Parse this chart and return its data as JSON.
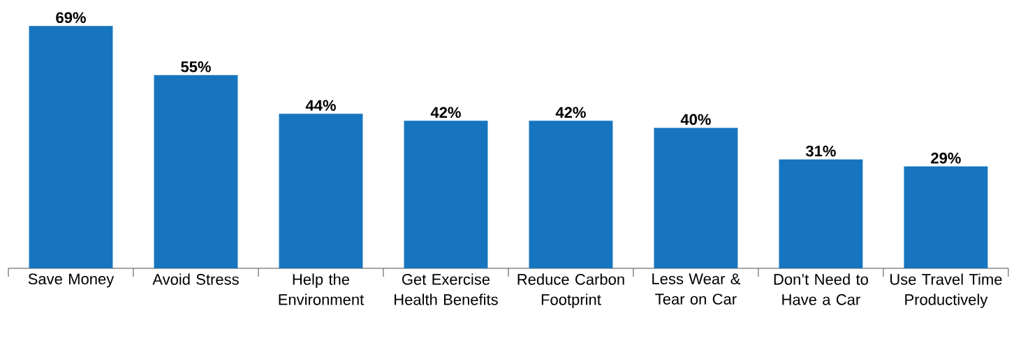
{
  "chart_data": {
    "type": "bar",
    "categories": [
      "Save Money",
      "Avoid Stress",
      "Help the Environment",
      "Get Exercise Health Benefits",
      "Reduce Carbon Footprint",
      "Less Wear & Tear on Car",
      "Don’t Need to Have a Car",
      "Use Travel Time Productively"
    ],
    "values": [
      69,
      55,
      44,
      42,
      42,
      40,
      31,
      29
    ],
    "value_labels": [
      "69%",
      "55%",
      "44%",
      "42%",
      "42%",
      "40%",
      "31%",
      "29%"
    ],
    "color": "#1675be"
  }
}
